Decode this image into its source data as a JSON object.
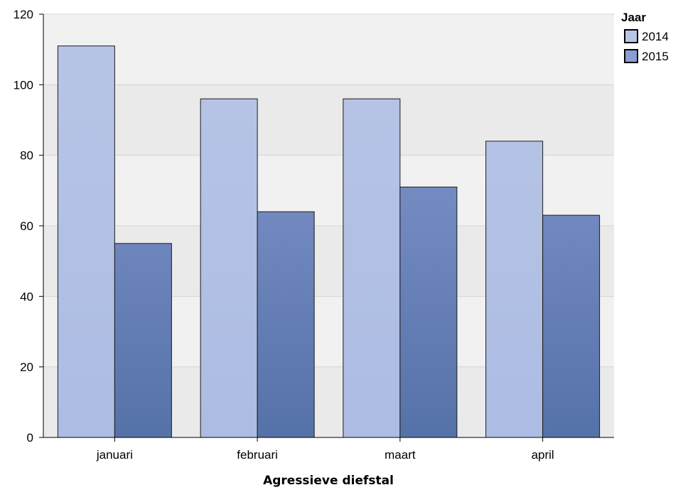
{
  "chart_data": {
    "type": "bar",
    "title": "",
    "xlabel": "Agressieve diefstal",
    "ylabel": "",
    "categories": [
      "januari",
      "februari",
      "maart",
      "april"
    ],
    "series": [
      {
        "name": "2014",
        "values": [
          111,
          96,
          96,
          84
        ],
        "color_top": "#b8c5e6",
        "color_bottom": "#adbce3"
      },
      {
        "name": "2015",
        "values": [
          55,
          64,
          71,
          63
        ],
        "color_top": "#8a9dd4",
        "color_bottom": "#5572a8"
      }
    ],
    "ylim": [
      0,
      120
    ],
    "yticks": [
      0,
      20,
      40,
      60,
      80,
      100,
      120
    ],
    "legend_title": "Jaar",
    "legend_position": "top-right",
    "grid": true,
    "background_bands": [
      "#eaeaea",
      "#f1f1f1"
    ]
  }
}
